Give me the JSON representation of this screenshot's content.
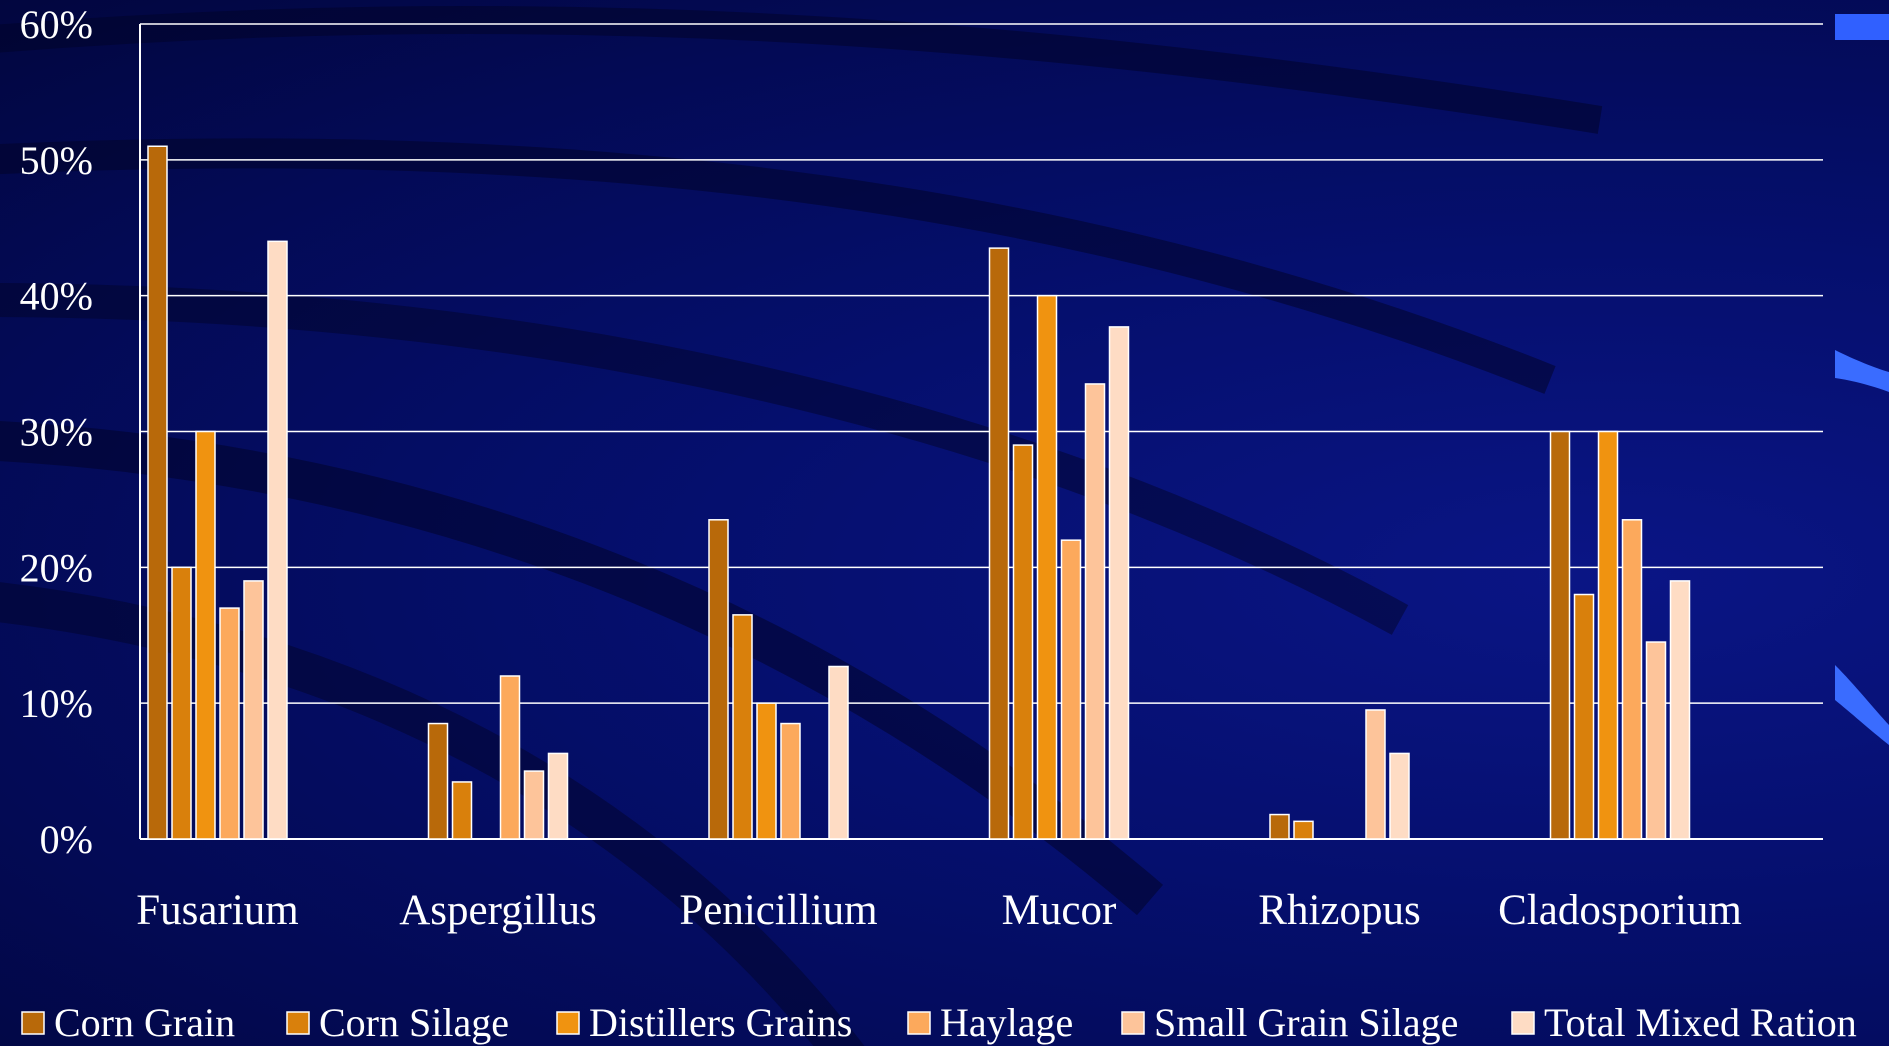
{
  "chart_data": {
    "type": "bar",
    "title": "",
    "xlabel": "",
    "ylabel": "",
    "ylim": [
      0,
      0.6
    ],
    "yticks": [
      "0%",
      "10%",
      "20%",
      "30%",
      "40%",
      "50%",
      "60%"
    ],
    "grid": true,
    "legend_position": "bottom",
    "categories": [
      "Fusarium",
      "Aspergillus",
      "Penicillium",
      "Mucor",
      "Rhizopus",
      "Cladosporium"
    ],
    "series": [
      {
        "name": "Corn Grain",
        "color": "#b8690a",
        "values": [
          0.51,
          0.085,
          0.235,
          0.435,
          0.018,
          0.3
        ]
      },
      {
        "name": "Corn Silage",
        "color": "#d9800c",
        "values": [
          0.2,
          0.042,
          0.165,
          0.29,
          0.013,
          0.18
        ]
      },
      {
        "name": "Distillers Grains",
        "color": "#f09310",
        "values": [
          0.3,
          0,
          0.1,
          0.4,
          0,
          0.3
        ]
      },
      {
        "name": "Haylage",
        "color": "#fca95c",
        "values": [
          0.17,
          0.12,
          0.085,
          0.22,
          0,
          0.235
        ]
      },
      {
        "name": "Small Grain Silage",
        "color": "#fdc49a",
        "values": [
          0.19,
          0.05,
          0,
          0.335,
          0.095,
          0.145
        ]
      },
      {
        "name": "Total Mixed Ration",
        "color": "#fedcc4",
        "values": [
          0.44,
          0.063,
          0.127,
          0.377,
          0.063,
          0.19
        ]
      }
    ]
  }
}
